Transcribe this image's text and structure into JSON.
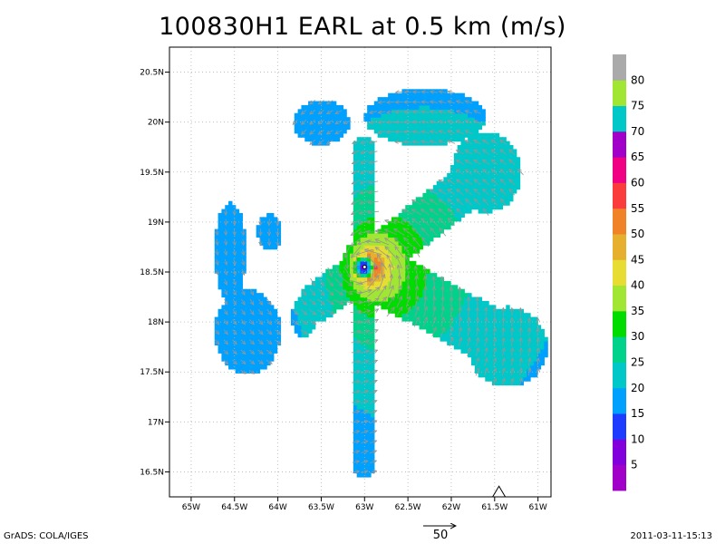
{
  "title": "100830H1 EARL at 0.5 km (m/s)",
  "footer": {
    "left": "GrADS: COLA/IGES",
    "right": "2011-03-11-15:13",
    "vector_scale_label": "50"
  },
  "chart_data": {
    "type": "heatmap",
    "title": "100830H1 EARL at 0.5 km (m/s)",
    "xlabel": "",
    "ylabel": "",
    "xlim": [
      -65.25,
      -60.85
    ],
    "ylim": [
      16.25,
      20.75
    ],
    "grid": true,
    "x_ticks": [
      {
        "value": -65.0,
        "label": "65W"
      },
      {
        "value": -64.5,
        "label": "64.5W"
      },
      {
        "value": -64.0,
        "label": "64W"
      },
      {
        "value": -63.5,
        "label": "63.5W"
      },
      {
        "value": -63.0,
        "label": "63W"
      },
      {
        "value": -62.5,
        "label": "62.5W"
      },
      {
        "value": -62.0,
        "label": "62W"
      },
      {
        "value": -61.5,
        "label": "61.5W"
      },
      {
        "value": -61.0,
        "label": "61W"
      }
    ],
    "y_ticks": [
      {
        "value": 16.5,
        "label": "16.5N"
      },
      {
        "value": 17.0,
        "label": "17N"
      },
      {
        "value": 17.5,
        "label": "17.5N"
      },
      {
        "value": 18.0,
        "label": "18N"
      },
      {
        "value": 18.5,
        "label": "18.5N"
      },
      {
        "value": 19.0,
        "label": "19N"
      },
      {
        "value": 19.5,
        "label": "19.5N"
      },
      {
        "value": 20.0,
        "label": "20N"
      },
      {
        "value": 20.5,
        "label": "20.5N"
      }
    ],
    "colorbar": {
      "labels": [
        "5",
        "10",
        "15",
        "20",
        "25",
        "30",
        "35",
        "40",
        "45",
        "50",
        "55",
        "60",
        "65",
        "70",
        "75",
        "80"
      ],
      "colors": [
        "#a000c8",
        "#8200dc",
        "#1e3cff",
        "#00a0ff",
        "#00c8c8",
        "#00d28c",
        "#00dc00",
        "#a0e632",
        "#e6dc32",
        "#e6af2d",
        "#f08228",
        "#fa3c3c",
        "#f00082",
        "#a000c8",
        "#00c8c8",
        "#a0e632",
        "#aaaaaa"
      ]
    },
    "center_marker": {
      "lon": -63.0,
      "lat": 18.55
    },
    "triangle_marker": {
      "lon": -61.45,
      "lat": 16.32
    },
    "reference_vector": {
      "magnitude": 50
    },
    "wind_field": {
      "center": {
        "lon": -63.0,
        "lat": 18.55
      },
      "eye_radius_deg": 0.08,
      "max_wind_ms": 56,
      "rmw_deg": 0.13,
      "decay_exponent": 0.36,
      "west_reduction": 0.3,
      "observation_legs": [
        {
          "from": [
            -63.0,
            18.55
          ],
          "to": [
            -63.0,
            16.55
          ],
          "half_width": 0.12
        },
        {
          "from": [
            -63.0,
            18.55
          ],
          "to": [
            -63.0,
            19.75
          ],
          "half_width": 0.12
        },
        {
          "from": [
            -63.0,
            18.55
          ],
          "to": [
            -61.9,
            19.3
          ],
          "half_width": 0.22
        },
        {
          "from": [
            -63.0,
            18.55
          ],
          "to": [
            -61.2,
            17.7
          ],
          "half_width": 0.28
        },
        {
          "from": [
            -63.0,
            18.55
          ],
          "to": [
            -63.55,
            18.2
          ],
          "half_width": 0.2
        }
      ],
      "observation_blobs": [
        {
          "lon": -62.3,
          "lat": 20.05,
          "rx": 0.7,
          "ry": 0.28
        },
        {
          "lon": -63.5,
          "lat": 20.0,
          "rx": 0.32,
          "ry": 0.22
        },
        {
          "lon": -61.6,
          "lat": 19.5,
          "rx": 0.4,
          "ry": 0.4
        },
        {
          "lon": -61.35,
          "lat": 17.75,
          "rx": 0.45,
          "ry": 0.4
        },
        {
          "lon": -64.35,
          "lat": 17.9,
          "rx": 0.38,
          "ry": 0.42
        },
        {
          "lon": -64.55,
          "lat": 18.7,
          "rx": 0.18,
          "ry": 0.5
        },
        {
          "lon": -64.1,
          "lat": 18.9,
          "rx": 0.14,
          "ry": 0.18
        },
        {
          "lon": -63.7,
          "lat": 18.05,
          "rx": 0.15,
          "ry": 0.2
        }
      ]
    }
  }
}
